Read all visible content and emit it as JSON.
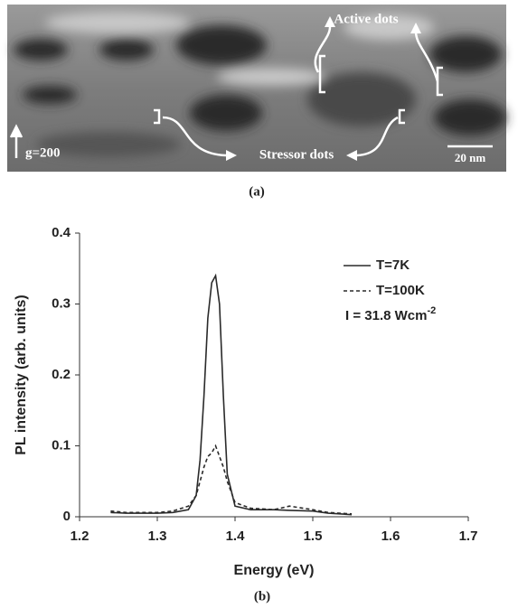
{
  "panel_a": {
    "labels": [
      "Active dots",
      "Stressor dots",
      "g=200",
      "20 nm"
    ],
    "caption": "(a)"
  },
  "panel_b_caption": "(b)",
  "chart_data": {
    "type": "line",
    "x_label": "Energy (eV)",
    "y_label": "PL intensity (arb. units)",
    "x": [
      1.24,
      1.26,
      1.28,
      1.3,
      1.32,
      1.34,
      1.35,
      1.355,
      1.36,
      1.365,
      1.37,
      1.375,
      1.38,
      1.385,
      1.39,
      1.4,
      1.42,
      1.45,
      1.47,
      1.5,
      1.52,
      1.55
    ],
    "series": [
      {
        "name": "T=7K",
        "color": "#2a2a2a",
        "line_style": "solid",
        "values": [
          0.006,
          0.005,
          0.005,
          0.005,
          0.006,
          0.01,
          0.03,
          0.08,
          0.17,
          0.28,
          0.33,
          0.34,
          0.3,
          0.17,
          0.06,
          0.015,
          0.01,
          0.01,
          0.009,
          0.008,
          0.005,
          0.003
        ]
      },
      {
        "name": "T=100K",
        "color": "#2a2a2a",
        "line_style": "dashed",
        "values": [
          0.008,
          0.006,
          0.006,
          0.006,
          0.008,
          0.015,
          0.03,
          0.05,
          0.07,
          0.085,
          0.09,
          0.1,
          0.085,
          0.07,
          0.05,
          0.02,
          0.012,
          0.01,
          0.015,
          0.01,
          0.006,
          0.004
        ]
      }
    ],
    "annotation": {
      "text": "I = 31.8 Wcm",
      "superscript": "-2"
    },
    "xlim": [
      1.2,
      1.7
    ],
    "xticks": [
      1.2,
      1.3,
      1.4,
      1.5,
      1.6,
      1.7
    ],
    "ylim": [
      0,
      0.4
    ],
    "yticks": [
      0,
      0.1,
      0.2,
      0.3,
      0.4
    ],
    "grid": false
  }
}
